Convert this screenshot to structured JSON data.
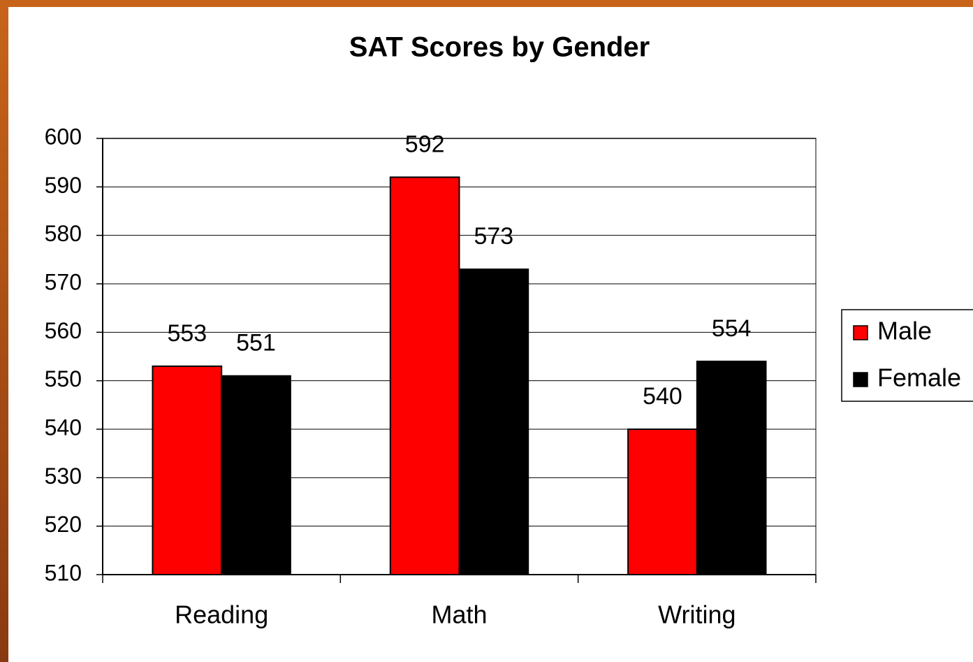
{
  "chart_data": {
    "type": "bar",
    "title": "SAT Scores by Gender",
    "categories": [
      "Reading",
      "Math",
      "Writing"
    ],
    "series": [
      {
        "name": "Male",
        "color": "#ff0000",
        "values": [
          553,
          592,
          540
        ]
      },
      {
        "name": "Female",
        "color": "#000000",
        "values": [
          551,
          573,
          554
        ]
      }
    ],
    "ylim": [
      510,
      600
    ],
    "yticks": [
      510,
      520,
      530,
      540,
      550,
      560,
      570,
      580,
      590,
      600
    ],
    "grid": true,
    "legend": "right"
  }
}
